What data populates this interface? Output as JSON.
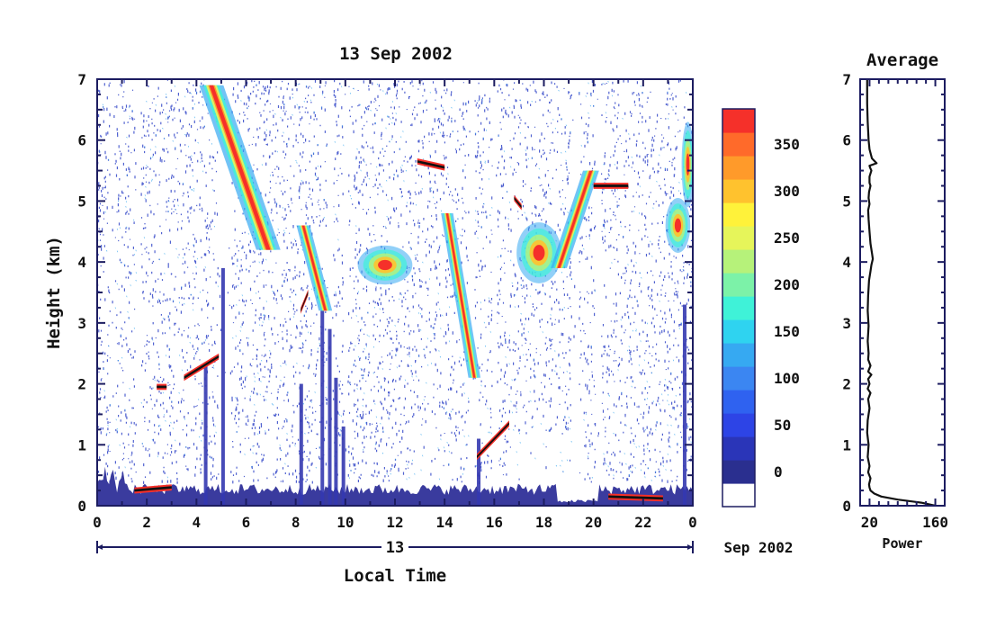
{
  "chart_data": [
    {
      "type": "heatmap",
      "title": "13 Sep 2002",
      "xlabel": "Local Time",
      "ylabel": "Height (km)",
      "x_ticks": [
        "0",
        "2",
        "4",
        "6",
        "8",
        "10",
        "12",
        "14",
        "16",
        "18",
        "20",
        "22",
        "0"
      ],
      "y_ticks": [
        "0",
        "1",
        "2",
        "3",
        "4",
        "5",
        "6",
        "7"
      ],
      "xlim": [
        0,
        24
      ],
      "ylim": [
        0,
        7
      ],
      "date_axis": {
        "day": "13",
        "month_year": "Sep 2002"
      },
      "colorbar": {
        "range": [
          0,
          380
        ],
        "ticks": [
          "0",
          "50",
          "100",
          "150",
          "200",
          "250",
          "300",
          "350"
        ],
        "colors": [
          "#ffffff",
          "#2a2f8f",
          "#2a35b8",
          "#2d44e6",
          "#2f62f0",
          "#3b86f2",
          "#36a9f2",
          "#2fd3f0",
          "#3ff2d8",
          "#7cf2a8",
          "#b6f27a",
          "#e6f55a",
          "#fff23a",
          "#ffc22e",
          "#ff9a2a",
          "#ff6a2a",
          "#f5302a"
        ]
      },
      "features": [
        {
          "name": "ground clutter",
          "x": [
            0,
            24
          ],
          "y": [
            0,
            0.4
          ]
        },
        {
          "name": "descending layer early",
          "x": [
            4.3,
            7.0
          ],
          "y_start": 7.0,
          "y_end": 4.1
        },
        {
          "name": "descending layer mid-morning",
          "x": [
            8.2,
            9.4
          ],
          "y_start": 4.6,
          "y_end": 3.1
        },
        {
          "name": "layer near 4 km",
          "x": [
            10.6,
            12.6
          ],
          "y": [
            3.6,
            4.3
          ]
        },
        {
          "name": "layer near 5.6 km",
          "x": [
            12.8,
            14.0
          ],
          "y": [
            5.4,
            5.7
          ]
        },
        {
          "name": "descending layer afternoon",
          "x": [
            14.0,
            15.3
          ],
          "y_start": 4.8,
          "y_end": 2.0
        },
        {
          "name": "strong layer near 4 km",
          "x": [
            17.0,
            18.8
          ],
          "y": [
            3.7,
            4.7
          ]
        },
        {
          "name": "rising echo",
          "x": [
            18.5,
            20.0
          ],
          "y_start": 3.8,
          "y_end": 5.6
        },
        {
          "name": "late layer",
          "x": [
            22.7,
            24.0
          ],
          "y": [
            4.2,
            6.5
          ]
        }
      ]
    },
    {
      "type": "line",
      "title": "Average",
      "xlabel": "Power",
      "ylabel": "",
      "x_ticks": [
        "20",
        "160"
      ],
      "y_ticks": [
        "0",
        "1",
        "2",
        "3",
        "4",
        "5",
        "6",
        "7"
      ],
      "xlim": [
        0,
        180
      ],
      "ylim": [
        0,
        7
      ],
      "series": [
        {
          "x": [
            160,
            130,
            80,
            45,
            30,
            22,
            20,
            19,
            22,
            17,
            20,
            16,
            18,
            15,
            16,
            20,
            17,
            22,
            16,
            20,
            17,
            24,
            17,
            22,
            17,
            18,
            16,
            18,
            16,
            17,
            19,
            22,
            24,
            27,
            25,
            22,
            20,
            18,
            17,
            20,
            18,
            19,
            22,
            20,
            20,
            24,
            21,
            20,
            35,
            25,
            20,
            18,
            16,
            15,
            15
          ],
          "y": [
            0.0,
            0.05,
            0.1,
            0.15,
            0.2,
            0.25,
            0.3,
            0.35,
            0.45,
            0.55,
            0.65,
            0.8,
            1.0,
            1.2,
            1.4,
            1.6,
            1.75,
            1.85,
            1.92,
            2.0,
            2.08,
            2.15,
            2.2,
            2.3,
            2.4,
            2.5,
            2.7,
            2.95,
            3.2,
            3.45,
            3.7,
            3.85,
            3.95,
            4.05,
            4.15,
            4.3,
            4.5,
            4.7,
            4.85,
            4.95,
            5.05,
            5.15,
            5.25,
            5.3,
            5.4,
            5.5,
            5.55,
            5.58,
            5.62,
            5.7,
            5.85,
            6.0,
            6.3,
            6.6,
            7.0
          ]
        }
      ]
    }
  ]
}
